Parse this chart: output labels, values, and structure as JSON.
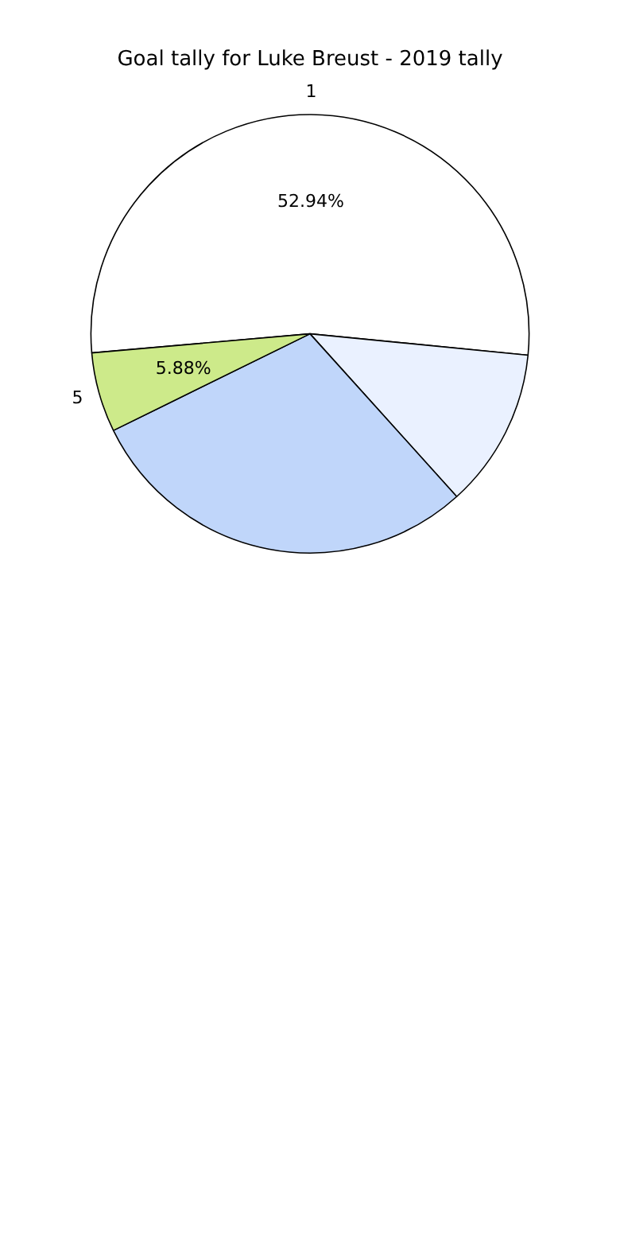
{
  "chart_data": {
    "type": "pie",
    "title": "Goal tally for Luke Breust - 2019 tally",
    "categories": [
      "1",
      null,
      null,
      "5"
    ],
    "values": [
      52.94,
      11.76,
      29.41,
      5.88
    ],
    "colors": [
      "#ffffff",
      "#eaf1ff",
      "#c0d6fa",
      "#cdea8a"
    ],
    "value_labels": [
      "52.94%",
      null,
      null,
      "5.88%"
    ],
    "legend": false
  }
}
